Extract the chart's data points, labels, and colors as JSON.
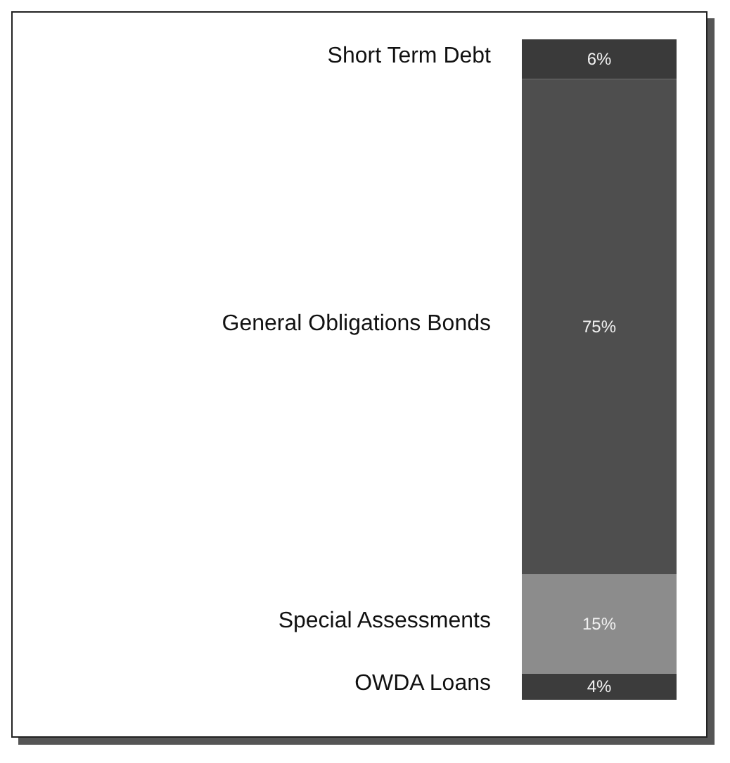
{
  "chart_data": {
    "type": "bar",
    "stacked": true,
    "categories": [
      null
    ],
    "series": [
      {
        "name": "OWDA Loans",
        "color": "#3c3c3c",
        "values": [
          4
        ],
        "value_labels": [
          "4%"
        ]
      },
      {
        "name": "Special Assessments",
        "color": "#8c8c8c",
        "values": [
          15
        ],
        "value_labels": [
          "15%"
        ]
      },
      {
        "name": "General Obligations Bonds",
        "color": "#4e4e4e",
        "values": [
          75
        ],
        "value_labels": [
          "75%"
        ]
      },
      {
        "name": "Short Term Debt",
        "color": "#3a3a3a",
        "values": [
          6
        ],
        "value_labels": [
          "6%"
        ]
      }
    ],
    "legend": false
  }
}
